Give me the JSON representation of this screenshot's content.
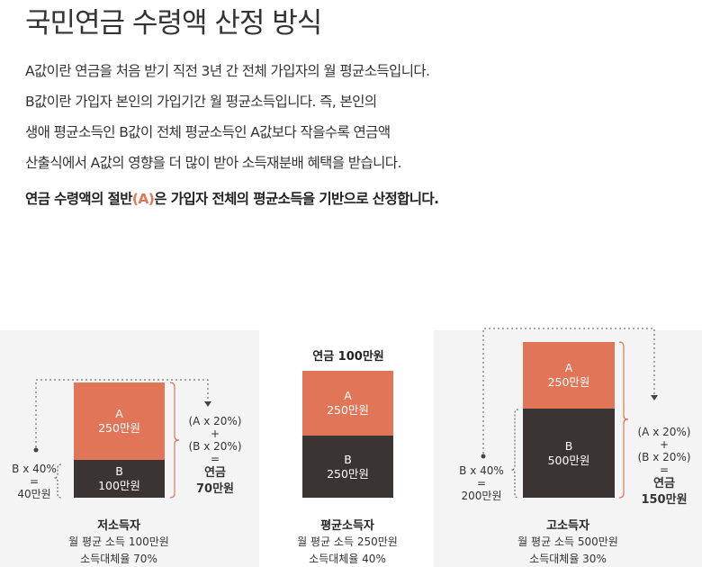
{
  "title": "국민연금 수령액 산정 방식",
  "description": [
    "A값이란 연금을 처음 받기 직전 3년 간 전체 가입자의 월 평균소득입니다.",
    "B값이란 가입자 본인의 가입기간 월 평균소득입니다. 즉, 본인의",
    "생애 평균소득인 B값이 전체 평균소득인 A값보다 작을수록 연금액",
    "산출식에서 A값의 영향을 더 많이 받아 소득재분배 혜택을 받습니다."
  ],
  "summary": {
    "before": "연금 수령액의 절반",
    "highlight": "(A)",
    "after": "은 가입자 전체의 평균소득을 기반으로 산정합니다."
  },
  "colors": {
    "a_bar": "#e07557",
    "b_bar": "#3a3432",
    "panel": "#f4f4f4"
  },
  "diagram": {
    "low": {
      "a_label": "A",
      "a_value": "250만원",
      "b_label": "B",
      "b_value": "100만원",
      "left_formula": [
        "B x 40%",
        "=",
        "40만원"
      ],
      "right_formula": [
        "(A x 20%)",
        "+",
        "(B x 20%)",
        "="
      ],
      "pension": "연금",
      "pension_amount": "70만원",
      "name": "저소득자",
      "income": "월 평균 소득 100만원",
      "ratio": "소득대체율 70%"
    },
    "average": {
      "top_label": "연금 100만원",
      "a_label": "A",
      "a_value": "250만원",
      "b_label": "B",
      "b_value": "250만원",
      "name": "평균소득자",
      "income": "월 평균 소득 250만원",
      "ratio": "소득대체율 40%"
    },
    "high": {
      "a_label": "A",
      "a_value": "250만원",
      "b_label": "B",
      "b_value": "500만원",
      "left_formula": [
        "B x 40%",
        "=",
        "200만원"
      ],
      "right_formula": [
        "(A x 20%)",
        "+",
        "(B x 20%)",
        "="
      ],
      "pension": "연금",
      "pension_amount": "150만원",
      "name": "고소득자",
      "income": "월 평균 소득 500만원",
      "ratio": "소득대체율 30%"
    }
  }
}
